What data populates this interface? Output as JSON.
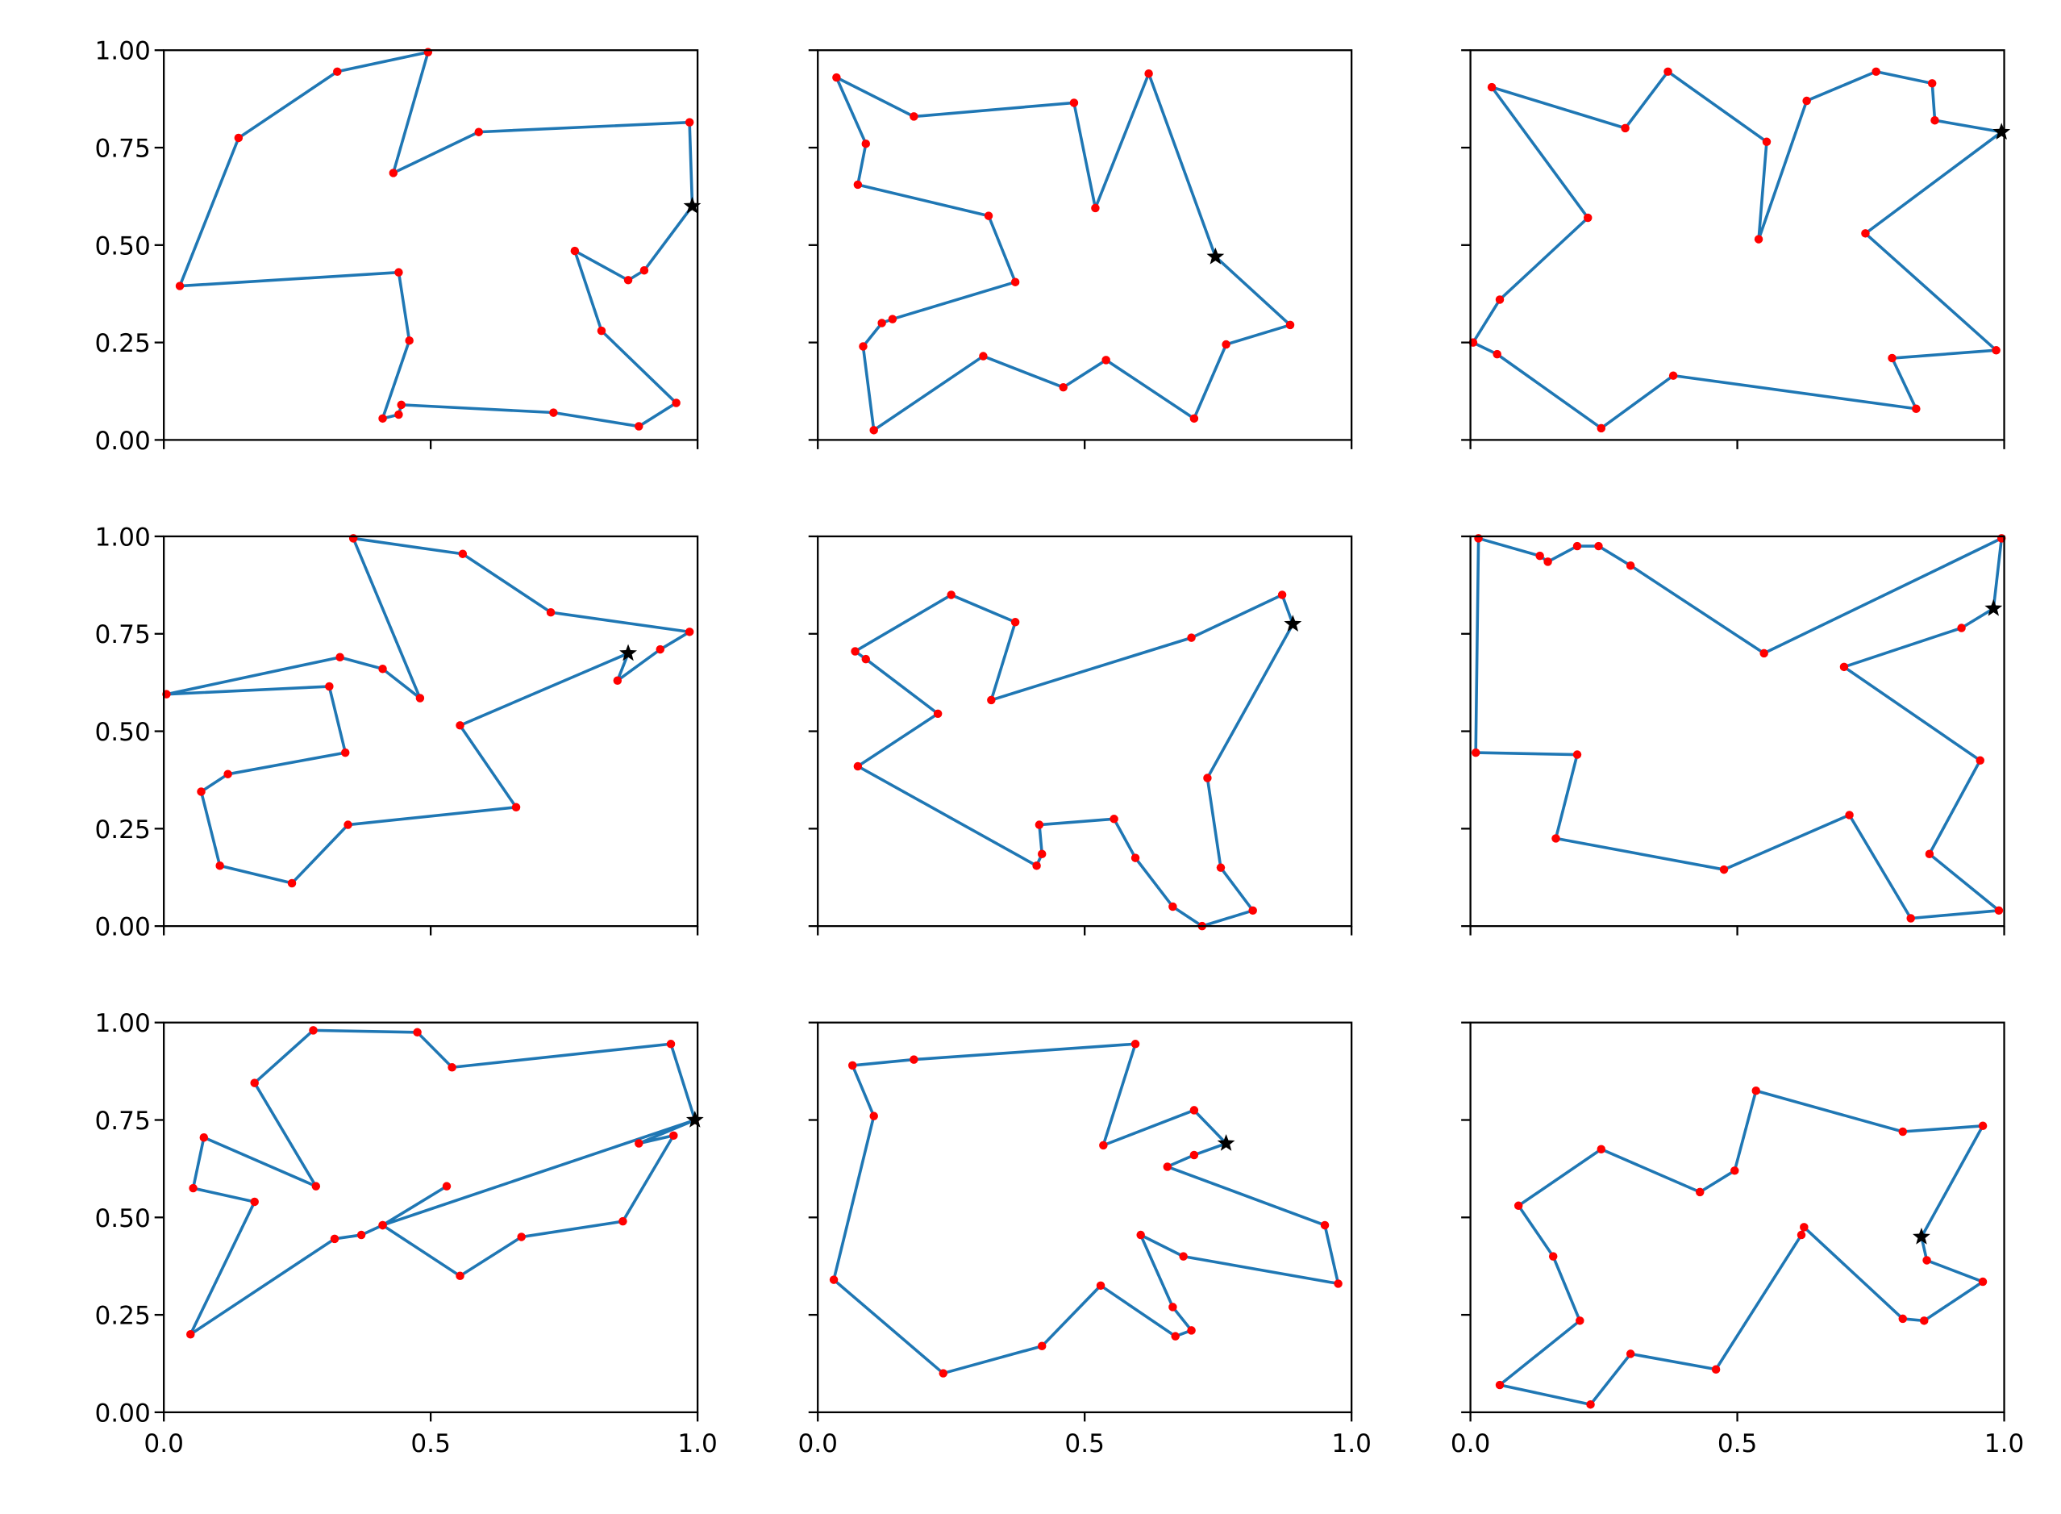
{
  "figure": {
    "grid": {
      "rows": 3,
      "cols": 3
    },
    "share_x": true,
    "share_y": true,
    "x_ticks": [
      "0.0",
      "0.5",
      "1.0"
    ],
    "y_ticks": [
      "0.00",
      "0.25",
      "0.50",
      "0.75",
      "1.00"
    ],
    "colors": {
      "line": "#1f77b4",
      "point": "#ff0000",
      "start_marker": "#000000"
    }
  },
  "chart_data": [
    {
      "type": "line",
      "title": "",
      "xlabel": "",
      "ylabel": "",
      "xlim": [
        0,
        1
      ],
      "ylim": [
        0,
        1
      ],
      "grid": false,
      "position": "row1-col1",
      "start": [
        0.99,
        0.6
      ],
      "path": [
        [
          0.99,
          0.6
        ],
        [
          0.985,
          0.815
        ],
        [
          0.59,
          0.79
        ],
        [
          0.43,
          0.685
        ],
        [
          0.495,
          0.995
        ],
        [
          0.325,
          0.945
        ],
        [
          0.14,
          0.775
        ],
        [
          0.03,
          0.395
        ],
        [
          0.44,
          0.43
        ],
        [
          0.46,
          0.255
        ],
        [
          0.41,
          0.055
        ],
        [
          0.44,
          0.065
        ],
        [
          0.445,
          0.09
        ],
        [
          0.73,
          0.07
        ],
        [
          0.89,
          0.035
        ],
        [
          0.96,
          0.095
        ],
        [
          0.82,
          0.28
        ],
        [
          0.77,
          0.485
        ],
        [
          0.87,
          0.41
        ],
        [
          0.9,
          0.435
        ],
        [
          0.99,
          0.6
        ]
      ]
    },
    {
      "type": "line",
      "title": "",
      "xlabel": "",
      "ylabel": "",
      "xlim": [
        0,
        1
      ],
      "ylim": [
        0,
        1
      ],
      "grid": false,
      "position": "row1-col2",
      "start": [
        0.745,
        0.47
      ],
      "path": [
        [
          0.745,
          0.47
        ],
        [
          0.62,
          0.94
        ],
        [
          0.52,
          0.595
        ],
        [
          0.48,
          0.865
        ],
        [
          0.18,
          0.83
        ],
        [
          0.035,
          0.93
        ],
        [
          0.09,
          0.76
        ],
        [
          0.075,
          0.655
        ],
        [
          0.32,
          0.575
        ],
        [
          0.37,
          0.405
        ],
        [
          0.14,
          0.31
        ],
        [
          0.12,
          0.3
        ],
        [
          0.085,
          0.24
        ],
        [
          0.105,
          0.025
        ],
        [
          0.31,
          0.215
        ],
        [
          0.46,
          0.135
        ],
        [
          0.54,
          0.205
        ],
        [
          0.705,
          0.055
        ],
        [
          0.765,
          0.245
        ],
        [
          0.885,
          0.295
        ],
        [
          0.745,
          0.47
        ]
      ]
    },
    {
      "type": "line",
      "title": "",
      "xlabel": "",
      "ylabel": "",
      "xlim": [
        0,
        1
      ],
      "ylim": [
        0,
        1
      ],
      "grid": false,
      "position": "row1-col3",
      "start": [
        0.995,
        0.79
      ],
      "path": [
        [
          0.995,
          0.79
        ],
        [
          0.87,
          0.82
        ],
        [
          0.865,
          0.915
        ],
        [
          0.76,
          0.945
        ],
        [
          0.63,
          0.87
        ],
        [
          0.54,
          0.515
        ],
        [
          0.555,
          0.765
        ],
        [
          0.37,
          0.945
        ],
        [
          0.29,
          0.8
        ],
        [
          0.04,
          0.905
        ],
        [
          0.22,
          0.57
        ],
        [
          0.055,
          0.36
        ],
        [
          0.005,
          0.25
        ],
        [
          0.05,
          0.22
        ],
        [
          0.245,
          0.03
        ],
        [
          0.38,
          0.165
        ],
        [
          0.835,
          0.08
        ],
        [
          0.79,
          0.21
        ],
        [
          0.985,
          0.23
        ],
        [
          0.74,
          0.53
        ],
        [
          0.995,
          0.79
        ]
      ]
    },
    {
      "type": "line",
      "title": "",
      "xlabel": "",
      "ylabel": "",
      "xlim": [
        0,
        1
      ],
      "ylim": [
        0,
        1
      ],
      "grid": false,
      "position": "row2-col1",
      "start": [
        0.87,
        0.7
      ],
      "path": [
        [
          0.87,
          0.7
        ],
        [
          0.555,
          0.515
        ],
        [
          0.66,
          0.305
        ],
        [
          0.345,
          0.26
        ],
        [
          0.24,
          0.11
        ],
        [
          0.105,
          0.155
        ],
        [
          0.07,
          0.345
        ],
        [
          0.12,
          0.39
        ],
        [
          0.34,
          0.445
        ],
        [
          0.31,
          0.615
        ],
        [
          0.005,
          0.595
        ],
        [
          0.33,
          0.69
        ],
        [
          0.41,
          0.66
        ],
        [
          0.48,
          0.585
        ],
        [
          0.355,
          0.995
        ],
        [
          0.56,
          0.955
        ],
        [
          0.725,
          0.805
        ],
        [
          0.985,
          0.755
        ],
        [
          0.93,
          0.71
        ],
        [
          0.85,
          0.63
        ],
        [
          0.87,
          0.7
        ]
      ]
    },
    {
      "type": "line",
      "title": "",
      "xlabel": "",
      "ylabel": "",
      "xlim": [
        0,
        1
      ],
      "ylim": [
        0,
        1
      ],
      "grid": false,
      "position": "row2-col2",
      "start": [
        0.89,
        0.775
      ],
      "path": [
        [
          0.89,
          0.775
        ],
        [
          0.87,
          0.85
        ],
        [
          0.7,
          0.74
        ],
        [
          0.325,
          0.58
        ],
        [
          0.37,
          0.78
        ],
        [
          0.25,
          0.85
        ],
        [
          0.07,
          0.705
        ],
        [
          0.09,
          0.685
        ],
        [
          0.225,
          0.545
        ],
        [
          0.075,
          0.41
        ],
        [
          0.41,
          0.155
        ],
        [
          0.42,
          0.185
        ],
        [
          0.415,
          0.26
        ],
        [
          0.555,
          0.275
        ],
        [
          0.595,
          0.175
        ],
        [
          0.665,
          0.05
        ],
        [
          0.72,
          0.0
        ],
        [
          0.815,
          0.04
        ],
        [
          0.755,
          0.15
        ],
        [
          0.73,
          0.38
        ],
        [
          0.89,
          0.775
        ]
      ]
    },
    {
      "type": "line",
      "title": "",
      "xlabel": "",
      "ylabel": "",
      "xlim": [
        0,
        1
      ],
      "ylim": [
        0,
        1
      ],
      "grid": false,
      "position": "row2-col3",
      "start": [
        0.98,
        0.815
      ],
      "path": [
        [
          0.98,
          0.815
        ],
        [
          0.995,
          0.995
        ],
        [
          0.55,
          0.7
        ],
        [
          0.3,
          0.925
        ],
        [
          0.24,
          0.975
        ],
        [
          0.2,
          0.975
        ],
        [
          0.145,
          0.935
        ],
        [
          0.13,
          0.95
        ],
        [
          0.015,
          0.995
        ],
        [
          0.01,
          0.445
        ],
        [
          0.2,
          0.44
        ],
        [
          0.16,
          0.225
        ],
        [
          0.475,
          0.145
        ],
        [
          0.71,
          0.285
        ],
        [
          0.825,
          0.02
        ],
        [
          0.99,
          0.04
        ],
        [
          0.86,
          0.185
        ],
        [
          0.955,
          0.425
        ],
        [
          0.7,
          0.665
        ],
        [
          0.92,
          0.765
        ],
        [
          0.98,
          0.815
        ]
      ]
    },
    {
      "type": "line",
      "title": "",
      "xlabel": "",
      "ylabel": "",
      "xlim": [
        0,
        1
      ],
      "ylim": [
        0,
        1
      ],
      "grid": false,
      "position": "row3-col1",
      "start": [
        0.995,
        0.75
      ],
      "path": [
        [
          0.995,
          0.75
        ],
        [
          0.95,
          0.945
        ],
        [
          0.54,
          0.885
        ],
        [
          0.475,
          0.975
        ],
        [
          0.28,
          0.98
        ],
        [
          0.17,
          0.845
        ],
        [
          0.285,
          0.58
        ],
        [
          0.075,
          0.705
        ],
        [
          0.055,
          0.575
        ],
        [
          0.17,
          0.54
        ],
        [
          0.05,
          0.2
        ],
        [
          0.32,
          0.445
        ],
        [
          0.37,
          0.455
        ],
        [
          0.41,
          0.48
        ],
        [
          0.555,
          0.35
        ],
        [
          0.67,
          0.45
        ],
        [
          0.86,
          0.49
        ],
        [
          0.955,
          0.71
        ],
        [
          0.89,
          0.69
        ],
        [
          0.995,
          0.75
        ],
        [
          0.41,
          0.48
        ],
        [
          0.53,
          0.58
        ]
      ]
    },
    {
      "type": "line",
      "title": "",
      "xlabel": "",
      "ylabel": "",
      "xlim": [
        0,
        1
      ],
      "ylim": [
        0,
        1
      ],
      "grid": false,
      "position": "row3-col2",
      "start": [
        0.765,
        0.69
      ],
      "path": [
        [
          0.765,
          0.69
        ],
        [
          0.705,
          0.775
        ],
        [
          0.535,
          0.685
        ],
        [
          0.595,
          0.945
        ],
        [
          0.18,
          0.905
        ],
        [
          0.065,
          0.89
        ],
        [
          0.105,
          0.76
        ],
        [
          0.03,
          0.34
        ],
        [
          0.235,
          0.1
        ],
        [
          0.42,
          0.17
        ],
        [
          0.53,
          0.325
        ],
        [
          0.67,
          0.195
        ],
        [
          0.7,
          0.21
        ],
        [
          0.665,
          0.27
        ],
        [
          0.605,
          0.455
        ],
        [
          0.685,
          0.4
        ],
        [
          0.975,
          0.33
        ],
        [
          0.95,
          0.48
        ],
        [
          0.655,
          0.63
        ],
        [
          0.705,
          0.66
        ],
        [
          0.765,
          0.69
        ]
      ]
    },
    {
      "type": "line",
      "title": "",
      "xlabel": "",
      "ylabel": "",
      "xlim": [
        0,
        1
      ],
      "ylim": [
        0,
        1
      ],
      "grid": false,
      "position": "row3-col3",
      "start": [
        0.845,
        0.45
      ],
      "path": [
        [
          0.845,
          0.45
        ],
        [
          0.96,
          0.735
        ],
        [
          0.81,
          0.72
        ],
        [
          0.535,
          0.825
        ],
        [
          0.495,
          0.62
        ],
        [
          0.43,
          0.565
        ],
        [
          0.245,
          0.675
        ],
        [
          0.09,
          0.53
        ],
        [
          0.155,
          0.4
        ],
        [
          0.205,
          0.235
        ],
        [
          0.055,
          0.07
        ],
        [
          0.225,
          0.02
        ],
        [
          0.3,
          0.15
        ],
        [
          0.46,
          0.11
        ],
        [
          0.62,
          0.455
        ],
        [
          0.625,
          0.475
        ],
        [
          0.81,
          0.24
        ],
        [
          0.85,
          0.235
        ],
        [
          0.96,
          0.335
        ],
        [
          0.855,
          0.39
        ],
        [
          0.845,
          0.45
        ]
      ]
    }
  ]
}
